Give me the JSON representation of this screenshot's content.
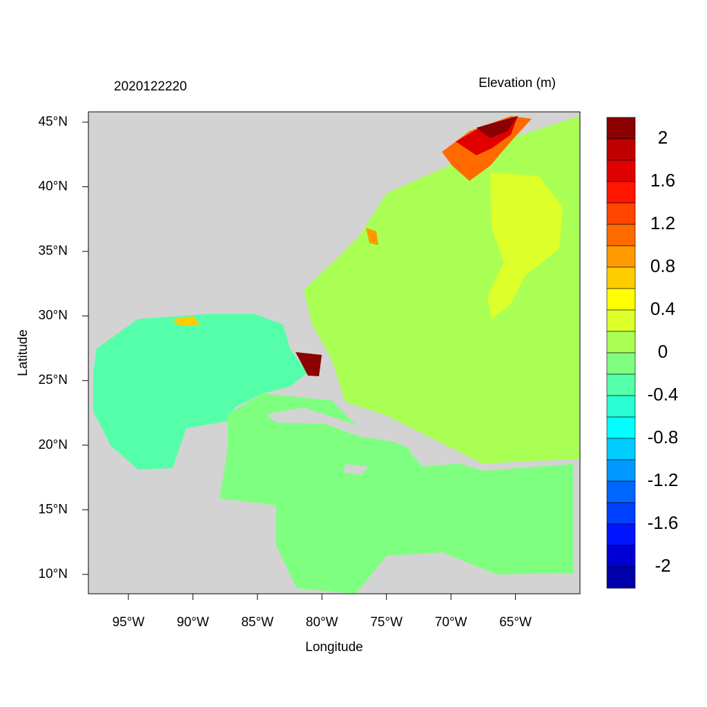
{
  "chart_data": {
    "type": "map",
    "title": "2020122220",
    "subtitle": "Elevation (m)",
    "x_label": "Longitude",
    "y_label": "Latitude",
    "xlim": [
      -98.1,
      -60
    ],
    "ylim": [
      8.5,
      45.8
    ],
    "xticks": [
      {
        "value": -95,
        "label": "95°W"
      },
      {
        "value": -90,
        "label": "90°W"
      },
      {
        "value": -85,
        "label": "85°W"
      },
      {
        "value": -80,
        "label": "80°W"
      },
      {
        "value": -75,
        "label": "75°W"
      },
      {
        "value": -70,
        "label": "70°W"
      },
      {
        "value": -65,
        "label": "65°W"
      }
    ],
    "yticks": [
      {
        "value": 10,
        "label": "10°N"
      },
      {
        "value": 15,
        "label": "15°N"
      },
      {
        "value": 20,
        "label": "20°N"
      },
      {
        "value": 25,
        "label": "25°N"
      },
      {
        "value": 30,
        "label": "30°N"
      },
      {
        "value": 35,
        "label": "35°N"
      },
      {
        "value": 40,
        "label": "40°N"
      },
      {
        "value": 45,
        "label": "45°N"
      }
    ],
    "colorbar": {
      "clim": [
        -2.2,
        2.2
      ],
      "ticks": [
        2,
        1.6,
        1.2,
        0.8,
        0.4,
        0,
        -0.4,
        -0.8,
        -1.2,
        -1.6,
        -2
      ],
      "colors": [
        "#8b0000",
        "#c00000",
        "#e00000",
        "#ff1500",
        "#ff4500",
        "#ff6a00",
        "#ff9a00",
        "#ffcc00",
        "#ffff00",
        "#ddff2a",
        "#aaff55",
        "#7fff7f",
        "#55ffaa",
        "#2affd4",
        "#00ffff",
        "#00ccff",
        "#0099ff",
        "#0066ff",
        "#0040ff",
        "#0015ff",
        "#0000d5",
        "#0000aa"
      ]
    }
  }
}
